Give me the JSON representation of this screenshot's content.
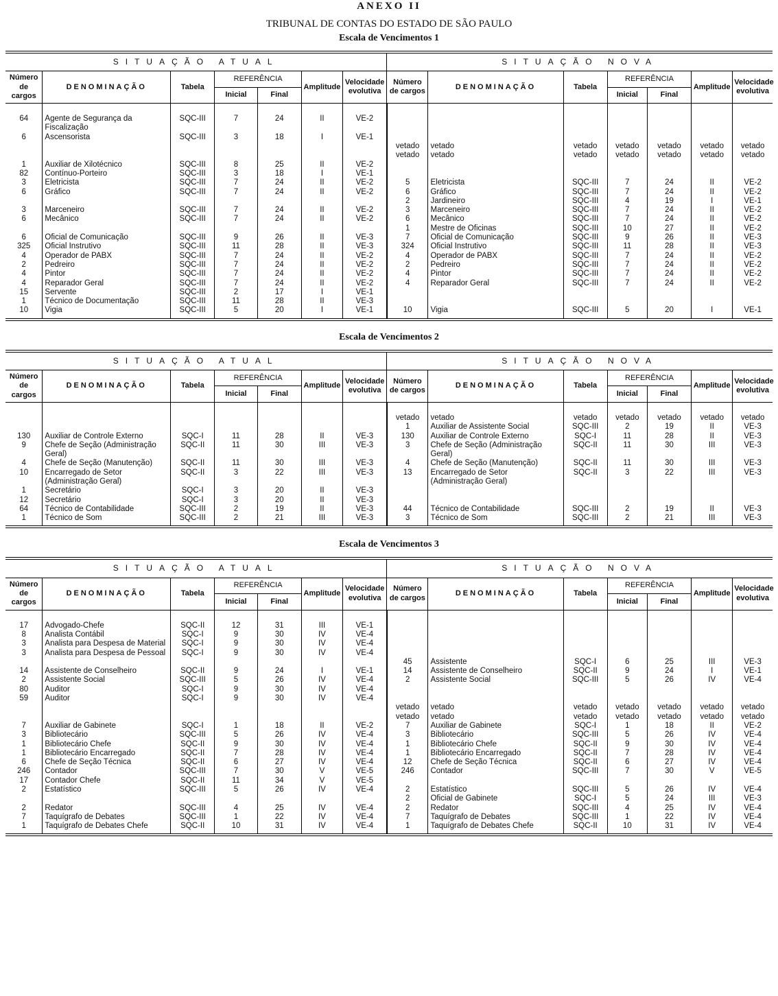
{
  "header": {
    "annex": "ANEXO II",
    "org": "TRIBUNAL DE CONTAS DO ESTADO DE SÃO PAULO"
  },
  "columns": {
    "atual": "SITUAÇÃO ATUAL",
    "nova": "SITUAÇÃO NOVA",
    "numero": "Número de cargos",
    "denominacao": "DENOMINAÇÃO",
    "tabela": "Tabela",
    "referencia": "REFERÊNCIA",
    "inicial": "Inicial",
    "final": "Final",
    "amplitude": "Amplitude",
    "velocidade": "Velocidade evolutiva"
  },
  "tables": [
    {
      "title": "Escala de Vencimentos 1",
      "rows": [
        [
          [
            "64",
            "Agente de Segurança da Fiscalização",
            "SQC-III",
            "7",
            "24",
            "II",
            "VE-2"
          ],
          null
        ],
        [
          [
            "6",
            "Ascensorista",
            "SQC-III",
            "3",
            "18",
            "I",
            "VE-1"
          ],
          null
        ],
        [
          null,
          [
            "vetado",
            "vetado",
            "vetado",
            "vetado",
            "vetado",
            "vetado",
            "vetado"
          ]
        ],
        [
          null,
          [
            "vetado",
            "vetado",
            "vetado",
            "vetado",
            "vetado",
            "vetado",
            "vetado"
          ]
        ],
        [
          [
            "1",
            "Auxiliar de Xilotécnico",
            "SQC-III",
            "8",
            "25",
            "II",
            "VE-2"
          ],
          null
        ],
        [
          [
            "82",
            "Contínuo-Porteiro",
            "SQC-III",
            "3",
            "18",
            "I",
            "VE-1"
          ],
          null
        ],
        [
          [
            "3",
            "Eletricista",
            "SQC-III",
            "7",
            "24",
            "II",
            "VE-2"
          ],
          [
            "5",
            "Eletricista",
            "SQC-III",
            "7",
            "24",
            "II",
            "VE-2"
          ]
        ],
        [
          [
            "6",
            "Gráfico",
            "SQC-III",
            "7",
            "24",
            "II",
            "VE-2"
          ],
          [
            "6",
            "Gráfico",
            "SQC-III",
            "7",
            "24",
            "II",
            "VE-2"
          ]
        ],
        [
          null,
          [
            "2",
            "Jardineiro",
            "SQC-III",
            "4",
            "19",
            "I",
            "VE-1"
          ]
        ],
        [
          [
            "3",
            "Marceneiro",
            "SQC-III",
            "7",
            "24",
            "II",
            "VE-2"
          ],
          [
            "3",
            "Marceneiro",
            "SQC-III",
            "7",
            "24",
            "II",
            "VE-2"
          ]
        ],
        [
          [
            "6",
            "Mecânico",
            "SQC-III",
            "7",
            "24",
            "II",
            "VE-2"
          ],
          [
            "6",
            "Mecânico",
            "SQC-III",
            "7",
            "24",
            "II",
            "VE-2"
          ]
        ],
        [
          null,
          [
            "1",
            "Mestre de Oficinas",
            "SQC-III",
            "10",
            "27",
            "II",
            "VE-2"
          ]
        ],
        [
          [
            "6",
            "Oficial de Comunicação",
            "SQC-III",
            "9",
            "26",
            "II",
            "VE-3"
          ],
          [
            "7",
            "Oficial de Comunicação",
            "SQC-III",
            "9",
            "26",
            "II",
            "VE-3"
          ]
        ],
        [
          [
            "325",
            "Oficial Instrutivo",
            "SQC-III",
            "11",
            "28",
            "II",
            "VE-3"
          ],
          [
            "324",
            "Oficial Instrutivo",
            "SQC-III",
            "11",
            "28",
            "II",
            "VE-3"
          ]
        ],
        [
          [
            "4",
            "Operador de PABX",
            "SQC-III",
            "7",
            "24",
            "II",
            "VE-2"
          ],
          [
            "4",
            "Operador de PABX",
            "SQC-III",
            "7",
            "24",
            "II",
            "VE-2"
          ]
        ],
        [
          [
            "2",
            "Pedreiro",
            "SQC-III",
            "7",
            "24",
            "II",
            "VE-2"
          ],
          [
            "2",
            "Pedreiro",
            "SQC-III",
            "7",
            "24",
            "II",
            "VE-2"
          ]
        ],
        [
          [
            "4",
            "Pintor",
            "SQC-III",
            "7",
            "24",
            "II",
            "VE-2"
          ],
          [
            "4",
            "Pintor",
            "SQC-III",
            "7",
            "24",
            "II",
            "VE-2"
          ]
        ],
        [
          [
            "4",
            "Reparador Geral",
            "SQC-III",
            "7",
            "24",
            "II",
            "VE-2"
          ],
          [
            "4",
            "Reparador Geral",
            "SQC-III",
            "7",
            "24",
            "II",
            "VE-2"
          ]
        ],
        [
          [
            "15",
            "Servente",
            "SQC-III",
            "2",
            "17",
            "I",
            "VE-1"
          ],
          null
        ],
        [
          [
            "1",
            "Técnico de Documentação",
            "SQC-III",
            "11",
            "28",
            "II",
            "VE-3"
          ],
          null
        ],
        [
          [
            "10",
            "Vigia",
            "SQC-III",
            "5",
            "20",
            "I",
            "VE-1"
          ],
          [
            "10",
            "Vigia",
            "SQC-III",
            "5",
            "20",
            "I",
            "VE-1"
          ]
        ]
      ]
    },
    {
      "title": "Escala de Vencimentos 2",
      "rows": [
        [
          null,
          [
            "vetado",
            "vetado",
            "vetado",
            "vetado",
            "vetado",
            "vetado",
            "vetado"
          ]
        ],
        [
          null,
          [
            "1",
            "Auxiliar de Assistente Social",
            "SQC-III",
            "2",
            "19",
            "II",
            "VE-3"
          ]
        ],
        [
          [
            "130",
            "Auxiliar de Controle Externo",
            "SQC-I",
            "11",
            "28",
            "II",
            "VE-3"
          ],
          [
            "130",
            "Auxiliar de Controle Externo",
            "SQC-I",
            "11",
            "28",
            "II",
            "VE-3"
          ]
        ],
        [
          [
            "9",
            "Chefe de Seção (Administração Geral)",
            "SQC-II",
            "11",
            "30",
            "III",
            "VE-3"
          ],
          [
            "3",
            "Chefe de Seção (Administração Geral)",
            "SQC-II",
            "11",
            "30",
            "III",
            "VE-3"
          ]
        ],
        [
          [
            "4",
            "Chefe de Seção (Manutenção)",
            "SQC-II",
            "11",
            "30",
            "III",
            "VE-3"
          ],
          [
            "4",
            "Chefe de Seção (Manutenção)",
            "SQC-II",
            "11",
            "30",
            "III",
            "VE-3"
          ]
        ],
        [
          [
            "10",
            "Encarregado de Setor (Administração Geral)",
            "SQC-II",
            "3",
            "22",
            "III",
            "VE-3"
          ],
          [
            "13",
            "Encarregado de Setor (Administração Geral)",
            "SQC-II",
            "3",
            "22",
            "III",
            "VE-3"
          ]
        ],
        [
          [
            "1",
            "Secretário",
            "SQC-I",
            "3",
            "20",
            "II",
            "VE-3"
          ],
          null
        ],
        [
          [
            "12",
            "Secretário",
            "SQC-I",
            "3",
            "20",
            "II",
            "VE-3"
          ],
          null
        ],
        [
          [
            "64",
            "Técnico de Contabilidade",
            "SQC-III",
            "2",
            "19",
            "II",
            "VE-3"
          ],
          [
            "44",
            "Técnico de Contabilidade",
            "SQC-III",
            "2",
            "19",
            "II",
            "VE-3"
          ]
        ],
        [
          [
            "1",
            "Técnico de Som",
            "SQC-III",
            "2",
            "21",
            "III",
            "VE-3"
          ],
          [
            "3",
            "Técnico de Som",
            "SQC-III",
            "2",
            "21",
            "III",
            "VE-3"
          ]
        ]
      ]
    },
    {
      "title": "Escala de Vencimentos 3",
      "rows": [
        [
          [
            "17",
            "Advogado-Chefe",
            "SQC-II",
            "12",
            "31",
            "III",
            "VE-1"
          ],
          null
        ],
        [
          [
            "8",
            "Analista Contábil",
            "SQC-I",
            "9",
            "30",
            "IV",
            "VE-4"
          ],
          null
        ],
        [
          [
            "3",
            "Analista para Despesa de Material",
            "SQC-I",
            "9",
            "30",
            "IV",
            "VE-4"
          ],
          null
        ],
        [
          [
            "3",
            "Analista para Despesa de Pessoal",
            "SQC-I",
            "9",
            "30",
            "IV",
            "VE-4"
          ],
          null
        ],
        [
          null,
          [
            "45",
            "Assistente",
            "SQC-I",
            "6",
            "25",
            "III",
            "VE-3"
          ]
        ],
        [
          [
            "14",
            "Assistente de Conselheiro",
            "SQC-II",
            "9",
            "24",
            "I",
            "VE-1"
          ],
          [
            "14",
            "Assistente de Conselheiro",
            "SQC-II",
            "9",
            "24",
            "I",
            "VE-1"
          ]
        ],
        [
          [
            "2",
            "Assistente Social",
            "SQC-III",
            "5",
            "26",
            "IV",
            "VE-4"
          ],
          [
            "2",
            "Assistente Social",
            "SQC-III",
            "5",
            "26",
            "IV",
            "VE-4"
          ]
        ],
        [
          [
            "80",
            "Auditor",
            "SQC-I",
            "9",
            "30",
            "IV",
            "VE-4"
          ],
          null
        ],
        [
          [
            "59",
            "Auditor",
            "SQC-I",
            "9",
            "30",
            "IV",
            "VE-4"
          ],
          null
        ],
        [
          null,
          [
            "vetado",
            "vetado",
            "vetado",
            "vetado",
            "vetado",
            "vetado",
            "vetado"
          ]
        ],
        [
          null,
          [
            "vetado",
            "vetado",
            "vetado",
            "vetado",
            "vetado",
            "vetado",
            "vetado"
          ]
        ],
        [
          [
            "7",
            "Auxiliar de Gabinete",
            "SQC-I",
            "1",
            "18",
            "II",
            "VE-2"
          ],
          [
            "7",
            "Auxiliar de Gabinete",
            "SQC-I",
            "1",
            "18",
            "II",
            "VE-2"
          ]
        ],
        [
          [
            "3",
            "Bibliotecário",
            "SQC-III",
            "5",
            "26",
            "IV",
            "VE-4"
          ],
          [
            "3",
            "Bibliotecário",
            "SQC-III",
            "5",
            "26",
            "IV",
            "VE-4"
          ]
        ],
        [
          [
            "1",
            "Bibliotecário Chefe",
            "SQC-II",
            "9",
            "30",
            "IV",
            "VE-4"
          ],
          [
            "1",
            "Bibliotecário Chefe",
            "SQC-II",
            "9",
            "30",
            "IV",
            "VE-4"
          ]
        ],
        [
          [
            "1",
            "Bibliotecário Encarregado",
            "SQC-II",
            "7",
            "28",
            "IV",
            "VE-4"
          ],
          [
            "1",
            "Bibliotecário Encarregado",
            "SQC-II",
            "7",
            "28",
            "IV",
            "VE-4"
          ]
        ],
        [
          [
            "6",
            "Chefe de Seção Técnica",
            "SQC-II",
            "6",
            "27",
            "IV",
            "VE-4"
          ],
          [
            "12",
            "Chefe de Seção Técnica",
            "SQC-II",
            "6",
            "27",
            "IV",
            "VE-4"
          ]
        ],
        [
          [
            "246",
            "Contador",
            "SQC-III",
            "7",
            "30",
            "V",
            "VE-5"
          ],
          [
            "246",
            "Contador",
            "SQC-III",
            "7",
            "30",
            "V",
            "VE-5"
          ]
        ],
        [
          [
            "17",
            "Contador Chefe",
            "SQC-II",
            "11",
            "34",
            "V",
            "VE-5"
          ],
          null
        ],
        [
          [
            "2",
            "Estatístico",
            "SQC-III",
            "5",
            "26",
            "IV",
            "VE-4"
          ],
          [
            "2",
            "Estatístico",
            "SQC-III",
            "5",
            "26",
            "IV",
            "VE-4"
          ]
        ],
        [
          null,
          [
            "2",
            "Oficial de Gabinete",
            "SQC-I",
            "5",
            "24",
            "III",
            "VE-3"
          ]
        ],
        [
          [
            "2",
            "Redator",
            "SQC-III",
            "4",
            "25",
            "IV",
            "VE-4"
          ],
          [
            "2",
            "Redator",
            "SQC-III",
            "4",
            "25",
            "IV",
            "VE-4"
          ]
        ],
        [
          [
            "7",
            "Taquígrafo de Debates",
            "SQC-III",
            "1",
            "22",
            "IV",
            "VE-4"
          ],
          [
            "7",
            "Taquígrafo de Debates",
            "SQC-III",
            "1",
            "22",
            "IV",
            "VE-4"
          ]
        ],
        [
          [
            "1",
            "Taquígrafo de Debates Chefe",
            "SQC-II",
            "10",
            "31",
            "IV",
            "VE-4"
          ],
          [
            "1",
            "Taquígrafo de Debates Chefe",
            "SQC-II",
            "10",
            "31",
            "IV",
            "VE-4"
          ]
        ]
      ]
    }
  ]
}
